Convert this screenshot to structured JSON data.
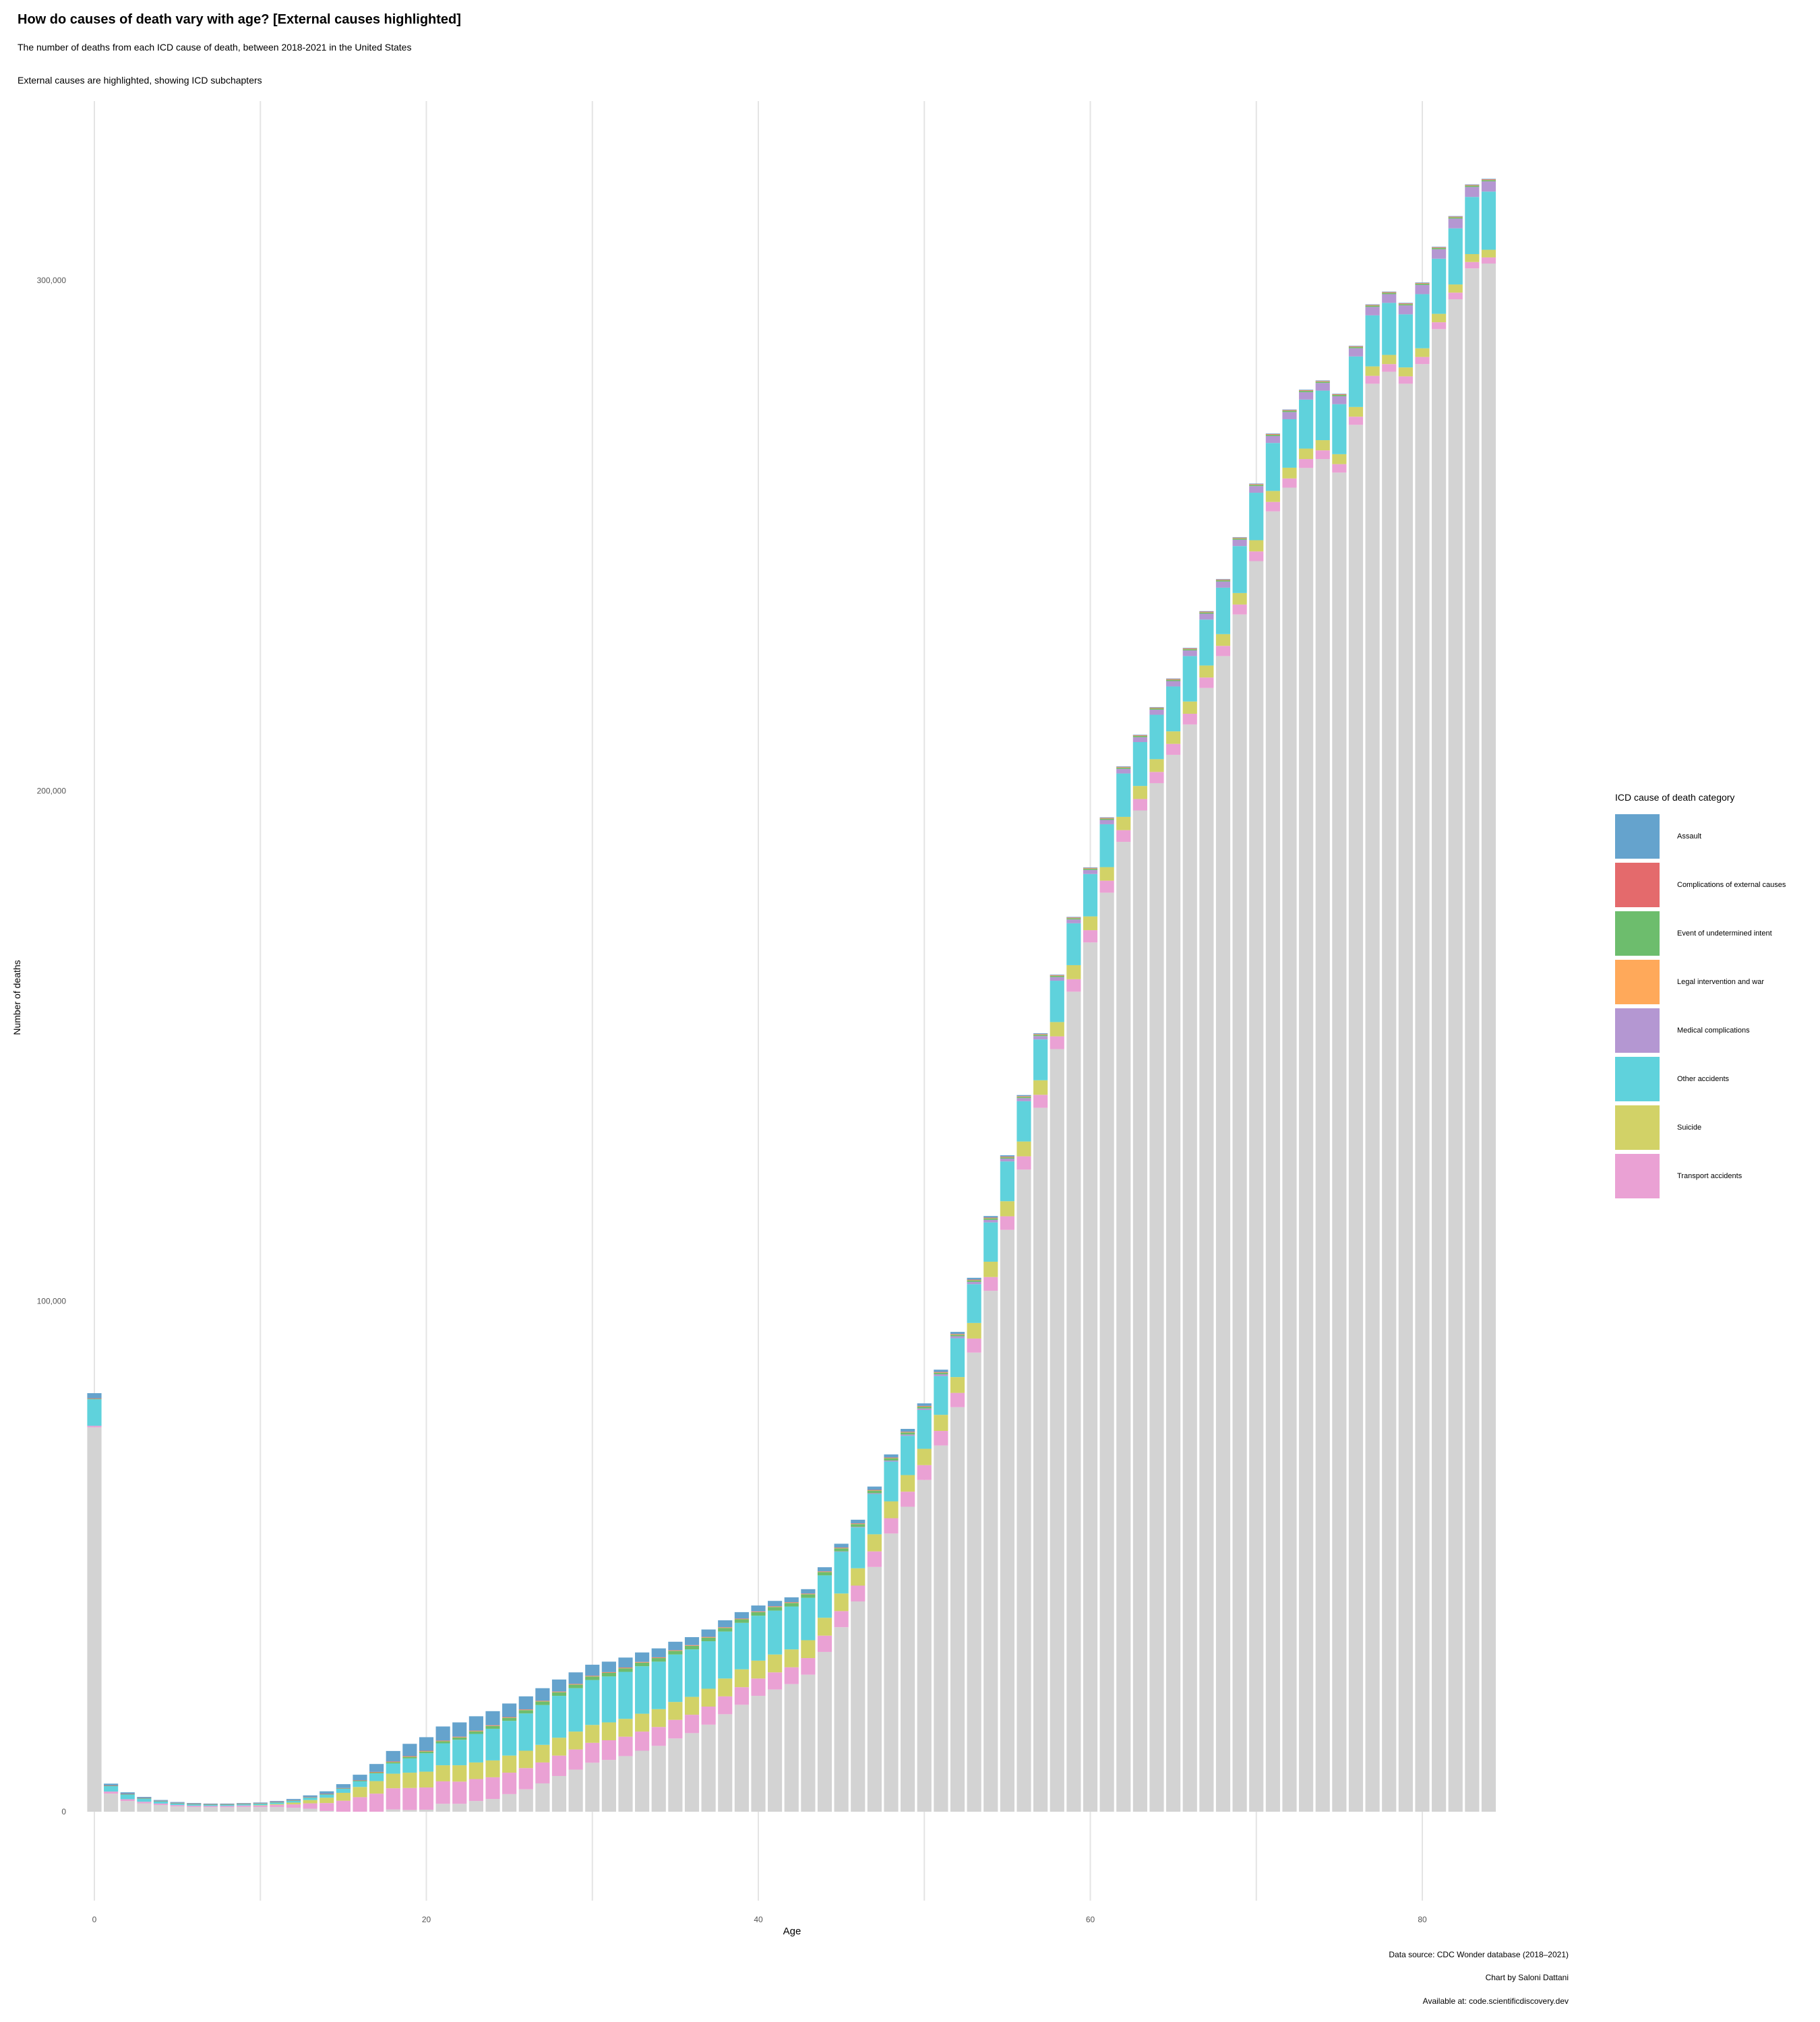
{
  "header": {
    "title": "How do causes of death vary with age? [External causes highlighted]",
    "subtitle": "The number of deaths from each ICD cause of death, between 2018-2021 in the United States",
    "subtitle2": "External causes are highlighted, showing ICD subchapters"
  },
  "legend": {
    "title": "ICD cause of death category",
    "items": [
      {
        "label": "Assault",
        "color": "#65a3cd"
      },
      {
        "label": "Complications of external causes",
        "color": "#e46a6c"
      },
      {
        "label": "Event of undetermined intent",
        "color": "#6dbd6d"
      },
      {
        "label": "Legal intervention and war",
        "color": "#ffa95a"
      },
      {
        "label": "Medical complications",
        "color": "#b497d2"
      },
      {
        "label": "Other accidents",
        "color": "#5fd2dc"
      },
      {
        "label": "Suicide",
        "color": "#d2d267"
      },
      {
        "label": "Transport accidents",
        "color": "#eaa1d4"
      }
    ]
  },
  "captions": {
    "source": "Data source: CDC Wonder database (2018–2021)",
    "author": "Chart by Saloni Dattani",
    "available": "Available at: code.scientificdiscovery.dev"
  },
  "chart_data": {
    "type": "bar",
    "stacked": true,
    "xlabel": "Age",
    "ylabel": "Number of deaths",
    "xlim": [
      0,
      84
    ],
    "ylim": [
      0,
      300000
    ],
    "x_ticks": [
      0,
      20,
      40,
      60,
      80
    ],
    "y_ticks": [
      0,
      100000,
      200000,
      300000
    ],
    "x_tick_labels": [
      "0",
      "20",
      "40",
      "60",
      "80"
    ],
    "y_tick_labels": [
      "0",
      "100,000",
      "200,000",
      "300,000"
    ],
    "grid": "vertical",
    "legend_position": "right",
    "total_color": "#d3d3d3",
    "ages": [
      0,
      1,
      2,
      3,
      4,
      5,
      6,
      7,
      8,
      9,
      10,
      11,
      12,
      13,
      14,
      15,
      16,
      17,
      18,
      19,
      20,
      21,
      22,
      23,
      24,
      25,
      26,
      27,
      28,
      29,
      30,
      31,
      32,
      33,
      34,
      35,
      36,
      37,
      38,
      39,
      40,
      41,
      42,
      43,
      44,
      45,
      46,
      47,
      48,
      49,
      50,
      51,
      52,
      53,
      54,
      55,
      56,
      57,
      58,
      59,
      60,
      61,
      62,
      63,
      64,
      65,
      66,
      67,
      68,
      69,
      70,
      71,
      72,
      73,
      74,
      75,
      76,
      77,
      78,
      79,
      80,
      81,
      82,
      83,
      84
    ],
    "total_deaths": [
      82000,
      5500,
      3800,
      2900,
      2300,
      1900,
      1700,
      1600,
      1600,
      1700,
      1800,
      2100,
      2500,
      3200,
      4000,
      5000,
      6300,
      8600,
      11900,
      13300,
      14600,
      16700,
      17500,
      18700,
      19700,
      21200,
      22600,
      24200,
      25900,
      27300,
      28800,
      29400,
      30200,
      31200,
      32000,
      33300,
      34200,
      35700,
      37500,
      39100,
      40400,
      41300,
      42000,
      43600,
      47900,
      52500,
      57200,
      63700,
      70000,
      75000,
      80000,
      86600,
      94000,
      104600,
      116700,
      128600,
      140400,
      152500,
      164000,
      175300,
      185000,
      194800,
      204800,
      211000,
      216400,
      222000,
      228000,
      235200,
      241500,
      249700,
      260200,
      270000,
      274700,
      278600,
      280400,
      277800,
      287200,
      295300,
      297800,
      295600,
      299600,
      306600,
      312600,
      318800,
      319900
    ],
    "series": [
      {
        "name": "Transport accidents",
        "values": [
          300,
          400,
          350,
          300,
          280,
          260,
          250,
          240,
          250,
          280,
          320,
          420,
          650,
          1050,
          1550,
          2150,
          2850,
          3550,
          4150,
          4300,
          4350,
          4400,
          4350,
          4300,
          4250,
          4200,
          4150,
          4100,
          4000,
          3950,
          3900,
          3850,
          3800,
          3750,
          3700,
          3650,
          3600,
          3550,
          3500,
          3450,
          3400,
          3350,
          3300,
          3250,
          3200,
          3150,
          3100,
          3050,
          3000,
          2950,
          2900,
          2850,
          2800,
          2750,
          2700,
          2650,
          2600,
          2550,
          2500,
          2450,
          2400,
          2350,
          2300,
          2250,
          2200,
          2150,
          2100,
          2050,
          2000,
          1950,
          1900,
          1850,
          1800,
          1750,
          1700,
          1650,
          1600,
          1550,
          1500,
          1450,
          1400,
          1350,
          1300,
          1250,
          1200
        ]
      },
      {
        "name": "Suicide",
        "values": [
          0,
          0,
          0,
          0,
          0,
          0,
          0,
          0,
          0,
          0,
          50,
          150,
          350,
          650,
          1050,
          1550,
          2000,
          2450,
          2850,
          3000,
          3100,
          3150,
          3200,
          3250,
          3300,
          3350,
          3400,
          3450,
          3500,
          3500,
          3500,
          3500,
          3500,
          3500,
          3500,
          3500,
          3500,
          3500,
          3500,
          3500,
          3500,
          3500,
          3500,
          3500,
          3500,
          3450,
          3400,
          3350,
          3300,
          3250,
          3200,
          3150,
          3100,
          3050,
          3000,
          2950,
          2900,
          2850,
          2800,
          2750,
          2700,
          2650,
          2600,
          2550,
          2500,
          2450,
          2400,
          2350,
          2300,
          2250,
          2200,
          2150,
          2100,
          2050,
          2000,
          1950,
          1900,
          1850,
          1800,
          1750,
          1700,
          1650,
          1600,
          1550,
          1500
        ]
      },
      {
        "name": "Other accidents",
        "values": [
          5200,
          1100,
          950,
          650,
          450,
          350,
          300,
          270,
          270,
          280,
          300,
          330,
          380,
          480,
          600,
          800,
          1100,
          1500,
          2000,
          2800,
          3600,
          4300,
          5000,
          5600,
          6200,
          6800,
          7300,
          7800,
          8200,
          8500,
          8800,
          9000,
          9200,
          9300,
          9300,
          9300,
          9300,
          9300,
          9200,
          9100,
          8800,
          8600,
          8400,
          8300,
          8300,
          8200,
          8000,
          7900,
          7800,
          7700,
          7600,
          7600,
          7600,
          7600,
          7700,
          7800,
          7900,
          8000,
          8100,
          8200,
          8300,
          8400,
          8500,
          8600,
          8700,
          8800,
          8900,
          9000,
          9100,
          9200,
          9300,
          9400,
          9500,
          9600,
          9700,
          9800,
          9900,
          10000,
          10200,
          10400,
          10600,
          10800,
          11000,
          11200,
          11400
        ]
      },
      {
        "name": "Medical complications",
        "values": [
          0,
          0,
          0,
          0,
          0,
          0,
          0,
          0,
          0,
          0,
          0,
          0,
          0,
          0,
          0,
          0,
          0,
          0,
          0,
          0,
          0,
          0,
          0,
          0,
          0,
          0,
          0,
          0,
          0,
          0,
          0,
          0,
          0,
          0,
          0,
          0,
          0,
          0,
          0,
          0,
          0,
          0,
          0,
          0,
          0,
          50,
          100,
          150,
          200,
          250,
          300,
          350,
          400,
          450,
          500,
          550,
          600,
          650,
          700,
          750,
          800,
          850,
          900,
          950,
          1000,
          1050,
          1100,
          1150,
          1200,
          1250,
          1300,
          1350,
          1400,
          1450,
          1500,
          1550,
          1600,
          1650,
          1700,
          1750,
          1800,
          1850,
          1900,
          1950,
          2000
        ]
      },
      {
        "name": "Event of undetermined intent",
        "values": [
          100,
          50,
          50,
          50,
          50,
          50,
          50,
          50,
          50,
          50,
          50,
          50,
          50,
          50,
          100,
          100,
          150,
          200,
          250,
          300,
          350,
          400,
          450,
          500,
          550,
          600,
          650,
          700,
          700,
          700,
          700,
          700,
          700,
          700,
          700,
          700,
          700,
          700,
          700,
          700,
          700,
          700,
          700,
          700,
          650,
          600,
          550,
          500,
          450,
          400,
          350,
          300,
          300,
          300,
          300,
          250,
          250,
          250,
          250,
          250,
          250,
          250,
          250,
          250,
          250,
          250,
          250,
          250,
          250,
          250,
          250,
          250,
          250,
          250,
          250,
          250,
          250,
          250,
          250,
          250,
          250,
          250,
          250,
          250,
          250
        ]
      },
      {
        "name": "Legal intervention and war",
        "values": [
          0,
          0,
          0,
          0,
          0,
          0,
          0,
          0,
          0,
          0,
          0,
          0,
          0,
          0,
          0,
          0,
          0,
          50,
          100,
          100,
          100,
          100,
          100,
          100,
          100,
          100,
          100,
          100,
          100,
          100,
          100,
          100,
          100,
          100,
          100,
          100,
          100,
          100,
          100,
          100,
          100,
          100,
          100,
          100,
          100,
          100,
          100,
          100,
          100,
          100,
          100,
          100,
          100,
          100,
          100,
          100,
          100,
          100,
          100,
          100,
          100,
          100,
          100,
          100,
          100,
          100,
          100,
          100,
          100,
          100,
          100,
          100,
          100,
          100,
          100,
          100,
          100,
          100,
          100,
          100,
          100,
          100,
          100,
          100,
          100
        ]
      },
      {
        "name": "Complications of external causes",
        "values": [
          100,
          50,
          50,
          50,
          50,
          50,
          50,
          50,
          50,
          50,
          50,
          50,
          50,
          50,
          50,
          50,
          50,
          50,
          50,
          50,
          50,
          50,
          50,
          50,
          50,
          50,
          50,
          50,
          50,
          50,
          50,
          50,
          50,
          50,
          50,
          50,
          50,
          50,
          50,
          50,
          50,
          50,
          50,
          50,
          50,
          50,
          50,
          50,
          50,
          50,
          50,
          50,
          50,
          50,
          50,
          50,
          50,
          50,
          50,
          50,
          50,
          50,
          50,
          50,
          50,
          50,
          50,
          50,
          50,
          50,
          50,
          50,
          50,
          50,
          50,
          50,
          50,
          50,
          50,
          50,
          50,
          50,
          50,
          50,
          50
        ]
      },
      {
        "name": "Assault",
        "values": [
          1000,
          350,
          300,
          200,
          150,
          150,
          130,
          100,
          100,
          100,
          120,
          170,
          230,
          330,
          500,
          750,
          1100,
          1550,
          2050,
          2400,
          2650,
          2750,
          2800,
          2800,
          2750,
          2650,
          2550,
          2450,
          2350,
          2250,
          2150,
          2050,
          1950,
          1850,
          1750,
          1650,
          1550,
          1450,
          1350,
          1250,
          1150,
          1050,
          950,
          850,
          800,
          750,
          700,
          650,
          600,
          550,
          500,
          450,
          400,
          350,
          300,
          250,
          200,
          150,
          100,
          100,
          100,
          100,
          100,
          100,
          100,
          100,
          100,
          100,
          100,
          100,
          100,
          100,
          100,
          100,
          100,
          100,
          100,
          100,
          100,
          100,
          100,
          100,
          100,
          100,
          100
        ]
      }
    ]
  }
}
